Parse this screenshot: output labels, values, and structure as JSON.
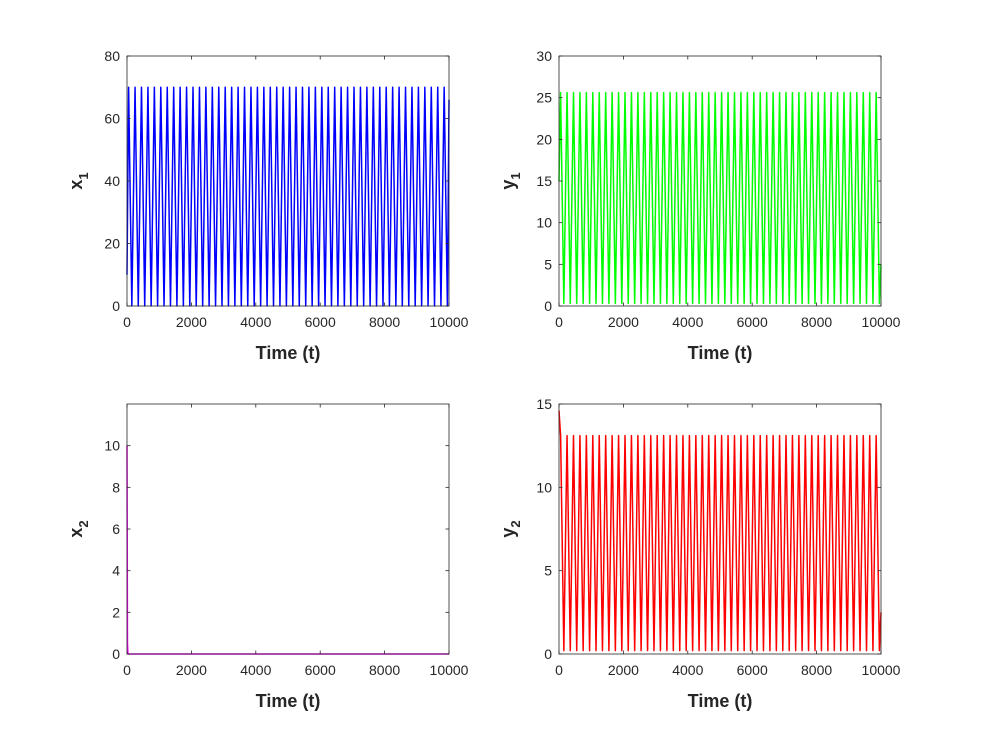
{
  "chart_data": [
    {
      "type": "line",
      "id": "x1",
      "xlabel": "Time (t)",
      "ylabel_main": "x",
      "ylabel_sub": "1",
      "xlim": [
        0,
        10000
      ],
      "ylim": [
        0,
        80
      ],
      "xticks": [
        0,
        2000,
        4000,
        6000,
        8000,
        10000
      ],
      "yticks": [
        0,
        20,
        40,
        60,
        80
      ],
      "grid": false,
      "series": [
        {
          "color": "#0000ff",
          "oscillation": {
            "initial": 10,
            "min": 0,
            "max": 70,
            "period": 200,
            "t_end": 10000,
            "end_value": 66
          }
        }
      ]
    },
    {
      "type": "line",
      "id": "y1",
      "xlabel": "Time (t)",
      "ylabel_main": "y",
      "ylabel_sub": "1",
      "xlim": [
        0,
        10000
      ],
      "ylim": [
        0,
        30
      ],
      "xticks": [
        0,
        2000,
        4000,
        6000,
        8000,
        10000
      ],
      "yticks": [
        0,
        5,
        10,
        15,
        20,
        25,
        30
      ],
      "grid": false,
      "series": [
        {
          "color": "#00ff00",
          "oscillation": {
            "initial": 15,
            "min": 0.3,
            "max": 25.6,
            "period": 200,
            "t_end": 10000,
            "end_value": 5
          }
        }
      ]
    },
    {
      "type": "line",
      "id": "x2",
      "xlabel": "Time (t)",
      "ylabel_main": "x",
      "ylabel_sub": "2",
      "xlim": [
        0,
        10000
      ],
      "ylim": [
        0,
        12
      ],
      "xticks": [
        0,
        2000,
        4000,
        6000,
        8000,
        10000
      ],
      "yticks": [
        0,
        2,
        4,
        6,
        8,
        10
      ],
      "grid": false,
      "series": [
        {
          "color": "#ff00ff",
          "x": [
            0,
            15,
            30,
            10000
          ],
          "y": [
            10,
            0.5,
            0,
            0
          ]
        }
      ]
    },
    {
      "type": "line",
      "id": "y2",
      "xlabel": "Time (t)",
      "ylabel_main": "y",
      "ylabel_sub": "2",
      "xlim": [
        0,
        10000
      ],
      "ylim": [
        0,
        15
      ],
      "xticks": [
        0,
        2000,
        4000,
        6000,
        8000,
        10000
      ],
      "yticks": [
        0,
        5,
        10,
        15
      ],
      "grid": false,
      "series": [
        {
          "color": "#ff0000",
          "oscillation": {
            "initial": 14.6,
            "min": 0.2,
            "max": 13.1,
            "period": 200,
            "t_end": 10000,
            "end_value": 2.5
          }
        }
      ]
    }
  ]
}
